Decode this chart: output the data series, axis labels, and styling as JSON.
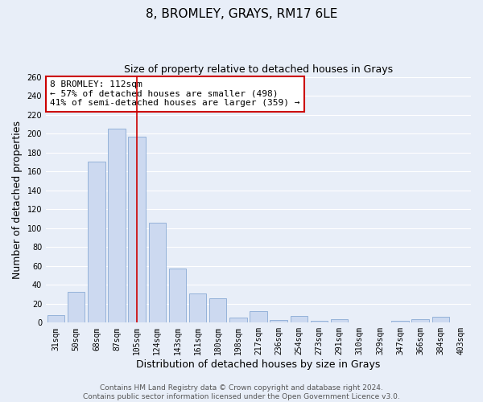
{
  "title": "8, BROMLEY, GRAYS, RM17 6LE",
  "subtitle": "Size of property relative to detached houses in Grays",
  "xlabel": "Distribution of detached houses by size in Grays",
  "ylabel": "Number of detached properties",
  "categories": [
    "31sqm",
    "50sqm",
    "68sqm",
    "87sqm",
    "105sqm",
    "124sqm",
    "143sqm",
    "161sqm",
    "180sqm",
    "198sqm",
    "217sqm",
    "236sqm",
    "254sqm",
    "273sqm",
    "291sqm",
    "310sqm",
    "329sqm",
    "347sqm",
    "366sqm",
    "384sqm",
    "403sqm"
  ],
  "values": [
    8,
    33,
    170,
    205,
    197,
    106,
    57,
    31,
    26,
    5,
    12,
    3,
    7,
    2,
    4,
    0,
    0,
    2,
    4,
    6,
    0
  ],
  "bar_color": "#ccd9f0",
  "bar_edge_color": "#8aaad4",
  "vline_index": 4,
  "vline_color": "#cc0000",
  "ylim": [
    0,
    260
  ],
  "yticks": [
    0,
    20,
    40,
    60,
    80,
    100,
    120,
    140,
    160,
    180,
    200,
    220,
    240,
    260
  ],
  "annotation_text": "8 BROMLEY: 112sqm\n← 57% of detached houses are smaller (498)\n41% of semi-detached houses are larger (359) →",
  "annotation_box_color": "white",
  "annotation_box_edge_color": "#cc0000",
  "footer_line1": "Contains HM Land Registry data © Crown copyright and database right 2024.",
  "footer_line2": "Contains public sector information licensed under the Open Government Licence v3.0.",
  "background_color": "#e8eef8",
  "grid_color": "white",
  "title_fontsize": 11,
  "subtitle_fontsize": 9,
  "axis_label_fontsize": 9,
  "tick_fontsize": 7,
  "annotation_fontsize": 8,
  "footer_fontsize": 6.5
}
